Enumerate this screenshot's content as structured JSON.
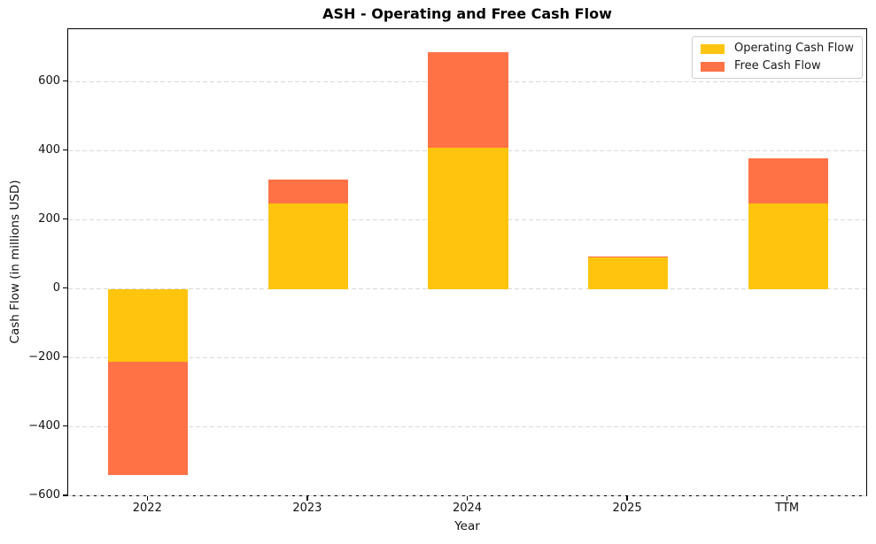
{
  "chart_data": {
    "type": "bar",
    "stacked": true,
    "title": "ASH - Operating and Free Cash Flow",
    "xlabel": "Year",
    "ylabel": "Cash Flow (in millions USD)",
    "categories": [
      "2022",
      "2023",
      "2024",
      "2025",
      "TTM"
    ],
    "series": [
      {
        "name": "Operating Cash Flow",
        "color": "#fec40e",
        "values": [
          -210,
          247,
          410,
          92,
          247
        ]
      },
      {
        "name": "Free Cash Flow",
        "color": "#ff7245",
        "values": [
          -330,
          71,
          276,
          3,
          133
        ]
      }
    ],
    "yticks": [
      600,
      400,
      200,
      0,
      -200,
      -400,
      -600
    ],
    "ytick_labels": [
      "600",
      "400",
      "200",
      "0",
      "−200",
      "−400",
      "−600"
    ],
    "ylim": [
      -603,
      753
    ],
    "grid": {
      "axis": "y",
      "style": "dashed",
      "color": "#d9d9d9"
    },
    "legend": {
      "position": "upper right",
      "entries": [
        "Operating Cash Flow",
        "Free Cash Flow"
      ]
    },
    "bar_width_fraction": 0.5
  }
}
